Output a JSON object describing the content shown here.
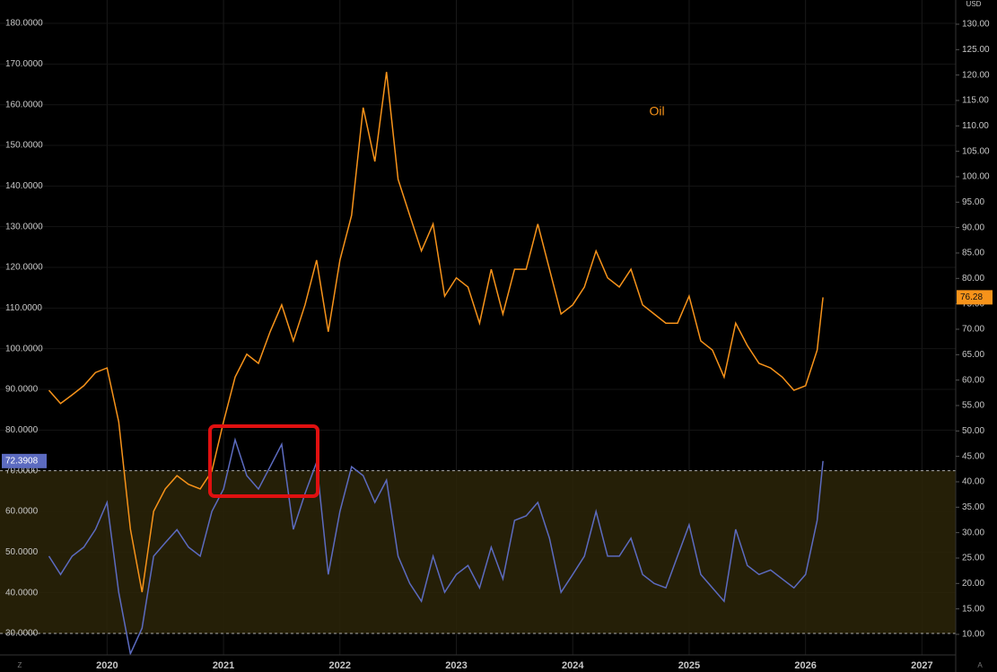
{
  "chart_data": {
    "type": "line",
    "currency": "USD",
    "corner_buttons": [
      "Z",
      "A"
    ],
    "x": [
      2019.5,
      2019.6,
      2019.7,
      2019.8,
      2019.9,
      2020.0,
      2020.1,
      2020.2,
      2020.3,
      2020.4,
      2020.5,
      2020.6,
      2020.7,
      2020.8,
      2020.9,
      2021.0,
      2021.1,
      2021.2,
      2021.3,
      2021.4,
      2021.5,
      2021.6,
      2021.7,
      2021.8,
      2021.9,
      2022.0,
      2022.1,
      2022.2,
      2022.3,
      2022.4,
      2022.5,
      2022.6,
      2022.7,
      2022.8,
      2022.9,
      2023.0,
      2023.1,
      2023.2,
      2023.3,
      2023.4,
      2023.5,
      2023.6,
      2023.7,
      2023.8,
      2023.9,
      2024.0,
      2024.1,
      2024.2,
      2024.3,
      2024.4,
      2024.5,
      2024.6,
      2024.7,
      2024.8,
      2024.9,
      2025.0,
      2025.1,
      2025.2,
      2025.3,
      2025.4,
      2025.5,
      2025.6,
      2025.7,
      2025.8,
      2025.9,
      2026.0,
      2026.1,
      2026.15
    ],
    "series": [
      {
        "name": "Oil",
        "color": "#f7931a",
        "axis": "y2",
        "values": [
          58.0,
          55.4,
          57.1,
          58.9,
          61.5,
          62.4,
          51.8,
          30.7,
          18.3,
          34.2,
          38.6,
          41.2,
          39.5,
          38.6,
          42.1,
          51.8,
          60.6,
          65.1,
          63.3,
          69.5,
          74.8,
          67.7,
          74.8,
          83.6,
          69.5,
          83.6,
          92.4,
          113.6,
          103.0,
          120.6,
          99.5,
          92.4,
          85.4,
          90.7,
          76.5,
          80.1,
          78.3,
          71.2,
          81.8,
          73.0,
          81.8,
          81.8,
          90.7,
          81.8,
          73.0,
          74.8,
          78.3,
          85.4,
          80.1,
          78.3,
          81.8,
          74.8,
          73.0,
          71.2,
          71.2,
          76.5,
          67.7,
          65.9,
          60.6,
          71.2,
          66.8,
          63.3,
          62.4,
          60.6,
          58.0,
          58.9,
          65.9,
          76.28
        ]
      },
      {
        "color": "#5c6bc0",
        "values": [
          49.0,
          44.5,
          49.0,
          51.2,
          55.6,
          62.2,
          40.1,
          25.0,
          31.3,
          49.0,
          52.3,
          55.5,
          51.2,
          49.0,
          60.0,
          65.5,
          77.6,
          68.8,
          65.5,
          71.0,
          76.5,
          55.6,
          64.4,
          72.1,
          44.5,
          60.0,
          71.0,
          68.8,
          62.2,
          67.7,
          49.0,
          42.3,
          37.9,
          49.0,
          40.1,
          44.5,
          46.7,
          41.2,
          51.2,
          43.4,
          57.8,
          58.9,
          62.2,
          53.4,
          40.1,
          44.5,
          49.0,
          60.0,
          49.0,
          49.0,
          53.4,
          44.5,
          42.3,
          41.2,
          49.0,
          56.7,
          44.5,
          41.2,
          37.9,
          55.6,
          46.7,
          44.5,
          45.6,
          43.4,
          41.2,
          44.5,
          57.8,
          72.3908
        ]
      }
    ],
    "band": [
      30,
      70
    ],
    "xlim": [
      2019.08,
      2027.29
    ],
    "xticks": [
      2020,
      2021,
      2022,
      2023,
      2024,
      2025,
      2026,
      2027
    ],
    "ylim": [
      24.71,
      185.74
    ],
    "yticks": [
      {
        "value": 30,
        "label": "30.0000"
      },
      {
        "value": 40,
        "label": "40.0000"
      },
      {
        "value": 50,
        "label": "50.0000"
      },
      {
        "value": 60,
        "label": "60.0000"
      },
      {
        "value": 70,
        "label": "70.0000"
      },
      {
        "value": 80,
        "label": "80.0000"
      },
      {
        "value": 90,
        "label": "90.0000"
      },
      {
        "value": 100,
        "label": "100.0000"
      },
      {
        "value": 110,
        "label": "110.0000"
      },
      {
        "value": 120,
        "label": "120.0000"
      },
      {
        "value": 130,
        "label": "130.0000"
      },
      {
        "value": 140,
        "label": "140.0000"
      },
      {
        "value": 150,
        "label": "150.0000"
      },
      {
        "value": 160,
        "label": "160.0000"
      },
      {
        "value": 170,
        "label": "170.0000"
      },
      {
        "value": 180,
        "label": "180.0000"
      }
    ],
    "y2lim": [
      5.94,
      134.76
    ],
    "y2ticks": [
      {
        "value": 10,
        "label": "10.00"
      },
      {
        "value": 15,
        "label": "15.00"
      },
      {
        "value": 20,
        "label": "20.00"
      },
      {
        "value": 25,
        "label": "25.00"
      },
      {
        "value": 30,
        "label": "30.00"
      },
      {
        "value": 35,
        "label": "35.00"
      },
      {
        "value": 40,
        "label": "40.00"
      },
      {
        "value": 45,
        "label": "45.00"
      },
      {
        "value": 50,
        "label": "50.00"
      },
      {
        "value": 55,
        "label": "55.00"
      },
      {
        "value": 60,
        "label": "60.00"
      },
      {
        "value": 65,
        "label": "65.00"
      },
      {
        "value": 70,
        "label": "70.00"
      },
      {
        "value": 75,
        "label": "75.00"
      },
      {
        "value": 80,
        "label": "80.00"
      },
      {
        "value": 85,
        "label": "85.00"
      },
      {
        "value": 90,
        "label": "90.00"
      },
      {
        "value": 95,
        "label": "95.00"
      },
      {
        "value": 100,
        "label": "100.00"
      },
      {
        "value": 105,
        "label": "105.00"
      },
      {
        "value": 110,
        "label": "110.00"
      },
      {
        "value": 115,
        "label": "115.00"
      },
      {
        "value": 120,
        "label": "120.00"
      },
      {
        "value": 125,
        "label": "125.00"
      },
      {
        "value": 130,
        "label": "130.00"
      }
    ],
    "grid": true
  }
}
